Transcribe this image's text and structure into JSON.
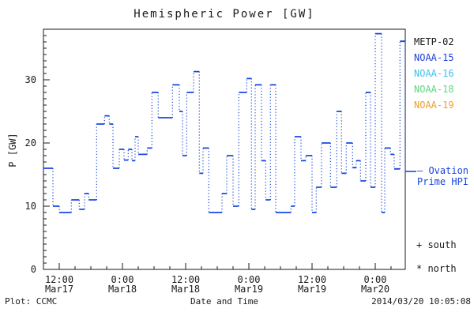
{
  "window": {
    "title": "Hemispheric Power [GW]"
  },
  "chart_data": {
    "type": "line",
    "style": "step",
    "title": "Hemispheric Power [GW]",
    "xlabel": "Date and Time",
    "ylabel": "P [GW]",
    "x_unit_hours_origin": "Mar17 09:00",
    "xlim": [
      0,
      68.7
    ],
    "ylim": [
      0,
      38
    ],
    "grid": "off",
    "y_major_ticks": [
      {
        "v": 0,
        "label": "0"
      },
      {
        "v": 10,
        "label": "10"
      },
      {
        "v": 20,
        "label": "20"
      },
      {
        "v": 30,
        "label": "30"
      }
    ],
    "y_minor_step": 1,
    "x_major_ticks": [
      {
        "t": 3,
        "time": "12:00",
        "date": "Mar17"
      },
      {
        "t": 15,
        "time": "0:00",
        "date": "Mar18"
      },
      {
        "t": 27,
        "time": "12:00",
        "date": "Mar18"
      },
      {
        "t": 39,
        "time": "0:00",
        "date": "Mar19"
      },
      {
        "t": 51,
        "time": "12:00",
        "date": "Mar19"
      },
      {
        "t": 63,
        "time": "0:00",
        "date": "Mar20"
      }
    ],
    "x_minor_step": 3,
    "series": [
      {
        "name": "Ovation Prime HPI",
        "color": "#1747df",
        "steps": [
          [
            0.0,
            16
          ],
          [
            1.8,
            10
          ],
          [
            3.0,
            9
          ],
          [
            5.3,
            11
          ],
          [
            6.8,
            9.5
          ],
          [
            7.8,
            12
          ],
          [
            8.6,
            11
          ],
          [
            10.1,
            23
          ],
          [
            11.6,
            24.3
          ],
          [
            12.5,
            23
          ],
          [
            13.2,
            16
          ],
          [
            14.4,
            19
          ],
          [
            15.3,
            17.3
          ],
          [
            16.1,
            19
          ],
          [
            16.8,
            17.2
          ],
          [
            17.4,
            21
          ],
          [
            18.0,
            18.2
          ],
          [
            19.7,
            19.2
          ],
          [
            20.6,
            28
          ],
          [
            21.8,
            24
          ],
          [
            24.5,
            29.2
          ],
          [
            25.8,
            25
          ],
          [
            26.4,
            18
          ],
          [
            27.2,
            28
          ],
          [
            28.5,
            31.3
          ],
          [
            29.6,
            15.2
          ],
          [
            30.3,
            19.2
          ],
          [
            31.4,
            9
          ],
          [
            33.9,
            12
          ],
          [
            34.8,
            18
          ],
          [
            36.0,
            10
          ],
          [
            37.1,
            28
          ],
          [
            38.6,
            30.2
          ],
          [
            39.5,
            9.5
          ],
          [
            40.2,
            29.2
          ],
          [
            41.4,
            17.2
          ],
          [
            42.2,
            11
          ],
          [
            43.1,
            29.2
          ],
          [
            44.1,
            9
          ],
          [
            47.0,
            10
          ],
          [
            47.7,
            21
          ],
          [
            48.9,
            17.2
          ],
          [
            49.8,
            18
          ],
          [
            51.0,
            9
          ],
          [
            51.8,
            13
          ],
          [
            52.8,
            20
          ],
          [
            54.5,
            13
          ],
          [
            55.7,
            25
          ],
          [
            56.6,
            15.2
          ],
          [
            57.5,
            20
          ],
          [
            58.7,
            16.1
          ],
          [
            59.4,
            17.2
          ],
          [
            60.2,
            14
          ],
          [
            61.2,
            28
          ],
          [
            62.1,
            13
          ],
          [
            63.0,
            37.3
          ],
          [
            64.2,
            9
          ],
          [
            64.8,
            19.2
          ],
          [
            65.9,
            18.2
          ],
          [
            66.6,
            15.9
          ],
          [
            67.7,
            36.1
          ],
          [
            68.7,
            15.5
          ]
        ]
      }
    ],
    "hpi_marker": {
      "value_gw": 15.5,
      "color": "#1747df"
    }
  },
  "legend": {
    "satellites": [
      {
        "label": "METP-02",
        "color": "#1a1a1a"
      },
      {
        "label": "NOAA-15",
        "color": "#1f3fd4"
      },
      {
        "label": "NOAA-16",
        "color": "#3ec0ee"
      },
      {
        "label": "NOAA-18",
        "color": "#58d97c"
      },
      {
        "label": "NOAA-19",
        "color": "#eda027"
      }
    ],
    "ovation": {
      "line1": "— Ovation",
      "line2": "Prime HPI",
      "color": "#1747df"
    },
    "south": "+ south",
    "north": "* north"
  },
  "footer": {
    "left": "Plot: CCMC",
    "center": "Date and Time",
    "right": "2014/03/20 10:05:08"
  }
}
